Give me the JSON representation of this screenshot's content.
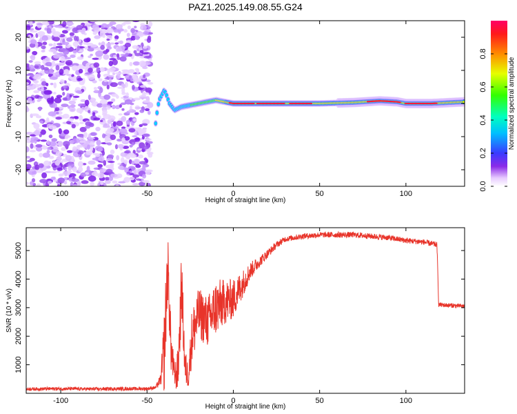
{
  "title": "PAZ1.2025.149.08.55.G24",
  "chart_data": [
    {
      "type": "heatmap",
      "title": "PAZ1.2025.149.08.55.G24",
      "xlabel": "Height of straight line (km)",
      "ylabel": "Frequency (Hz)",
      "xlim": [
        -120,
        134
      ],
      "ylim": [
        -25,
        25
      ],
      "xticks": [
        -100,
        -50,
        0,
        50,
        100
      ],
      "xtick_labels": [
        "-100",
        "-50",
        "0",
        "50",
        "100"
      ],
      "yticks": [
        -20,
        -10,
        0,
        10,
        20
      ],
      "ytick_labels": [
        "-20",
        "-10",
        "0",
        "10",
        "20"
      ],
      "noise_region_x": [
        -120,
        -48
      ],
      "ridge": [
        {
          "x": -45,
          "f": -6
        },
        {
          "x": -44,
          "f": -2
        },
        {
          "x": -43,
          "f": 1
        },
        {
          "x": -41,
          "f": 3
        },
        {
          "x": -40,
          "f": 4
        },
        {
          "x": -39,
          "f": 3
        },
        {
          "x": -37,
          "f": 0
        },
        {
          "x": -34,
          "f": -2
        },
        {
          "x": -30,
          "f": -1
        },
        {
          "x": -25,
          "f": -0.5
        },
        {
          "x": -20,
          "f": 0
        },
        {
          "x": -15,
          "f": 0.5
        },
        {
          "x": -10,
          "f": 1
        },
        {
          "x": -5,
          "f": 0.5
        },
        {
          "x": 0,
          "f": 0
        },
        {
          "x": 10,
          "f": 0
        },
        {
          "x": 30,
          "f": 0
        },
        {
          "x": 50,
          "f": 0
        },
        {
          "x": 70,
          "f": 0.3
        },
        {
          "x": 85,
          "f": 0.8
        },
        {
          "x": 95,
          "f": 0.5
        },
        {
          "x": 100,
          "f": 0
        },
        {
          "x": 115,
          "f": 0
        },
        {
          "x": 134,
          "f": 0.5
        }
      ],
      "colorbar": {
        "label": "Normalized spectral amplitude",
        "range": [
          0,
          1
        ],
        "ticks": [
          0.0,
          0.2,
          0.4,
          0.6,
          0.8
        ],
        "tick_labels": [
          "0.0",
          "0.2",
          "0.4",
          "0.6",
          "0.8"
        ],
        "colormap": "gist_rainbow_r"
      },
      "grid": false
    },
    {
      "type": "line",
      "xlabel": "Height of straight line (km)",
      "ylabel": "SNR (10 * v/v)",
      "xlim": [
        -120,
        134
      ],
      "ylim": [
        0,
        5800
      ],
      "xticks": [
        -100,
        -50,
        0,
        50,
        100
      ],
      "xtick_labels": [
        "-100",
        "-50",
        "0",
        "50",
        "100"
      ],
      "yticks": [
        1000,
        2000,
        3000,
        4000,
        5000
      ],
      "ytick_labels": [
        "1000",
        "2000",
        "3000",
        "4000",
        "5000"
      ],
      "series": [
        {
          "color": "#e8342a",
          "x": [
            -120,
            -100,
            -80,
            -60,
            -50,
            -45,
            -42,
            -40,
            -38,
            -36,
            -34,
            -32,
            -30,
            -28,
            -26,
            -24,
            -20,
            -15,
            -10,
            -5,
            0,
            5,
            10,
            15,
            20,
            25,
            30,
            40,
            50,
            60,
            70,
            80,
            90,
            100,
            110,
            118,
            119,
            120,
            125,
            134
          ],
          "values": [
            150,
            160,
            150,
            160,
            160,
            200,
            500,
            1500,
            4500,
            1500,
            600,
            800,
            3800,
            900,
            600,
            2000,
            2800,
            2500,
            3000,
            3200,
            3300,
            3800,
            4300,
            4600,
            4900,
            5200,
            5400,
            5500,
            5550,
            5550,
            5550,
            5500,
            5450,
            5350,
            5300,
            5200,
            3100,
            3100,
            3080,
            3050
          ],
          "noise_amplitude": [
            60,
            60,
            60,
            60,
            60,
            60,
            200,
            1500,
            1200,
            800,
            400,
            800,
            1200,
            700,
            400,
            1000,
            900,
            900,
            1000,
            800,
            700,
            500,
            300,
            200,
            150,
            120,
            100,
            100,
            100,
            100,
            100,
            100,
            100,
            100,
            100,
            100,
            80,
            80,
            80,
            80
          ]
        }
      ],
      "grid": false
    }
  ]
}
